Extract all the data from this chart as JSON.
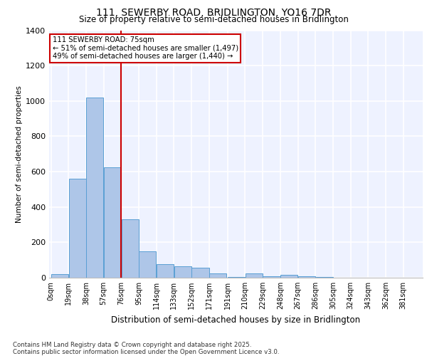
{
  "title1": "111, SEWERBY ROAD, BRIDLINGTON, YO16 7DR",
  "title2": "Size of property relative to semi-detached houses in Bridlington",
  "xlabel": "Distribution of semi-detached houses by size in Bridlington",
  "ylabel": "Number of semi-detached properties",
  "footer1": "Contains HM Land Registry data © Crown copyright and database right 2025.",
  "footer2": "Contains public sector information licensed under the Open Government Licence v3.0.",
  "bin_labels": [
    "0sqm",
    "19sqm",
    "38sqm",
    "57sqm",
    "76sqm",
    "95sqm",
    "114sqm",
    "133sqm",
    "152sqm",
    "171sqm",
    "191sqm",
    "210sqm",
    "229sqm",
    "248sqm",
    "267sqm",
    "286sqm",
    "305sqm",
    "324sqm",
    "343sqm",
    "362sqm",
    "381sqm"
  ],
  "bar_values": [
    20,
    560,
    1020,
    625,
    330,
    150,
    75,
    65,
    55,
    25,
    5,
    25,
    10,
    15,
    10,
    5,
    0,
    0,
    0,
    0
  ],
  "bar_left_edges": [
    0,
    19,
    38,
    57,
    76,
    95,
    114,
    133,
    152,
    171,
    191,
    210,
    229,
    248,
    267,
    286,
    305,
    324,
    343,
    362
  ],
  "bin_width": 19,
  "ylim": [
    0,
    1400
  ],
  "yticks": [
    0,
    200,
    400,
    600,
    800,
    1000,
    1200,
    1400
  ],
  "bar_color": "#aec6e8",
  "bar_edge_color": "#5a9fd4",
  "vline_x": 76,
  "vline_color": "#cc0000",
  "annotation_title": "111 SEWERBY ROAD: 75sqm",
  "annotation_line1": "← 51% of semi-detached houses are smaller (1,497)",
  "annotation_line2": "49% of semi-detached houses are larger (1,440) →",
  "annotation_box_color": "#cc0000",
  "bg_color": "#eef2ff",
  "grid_color": "#ffffff"
}
